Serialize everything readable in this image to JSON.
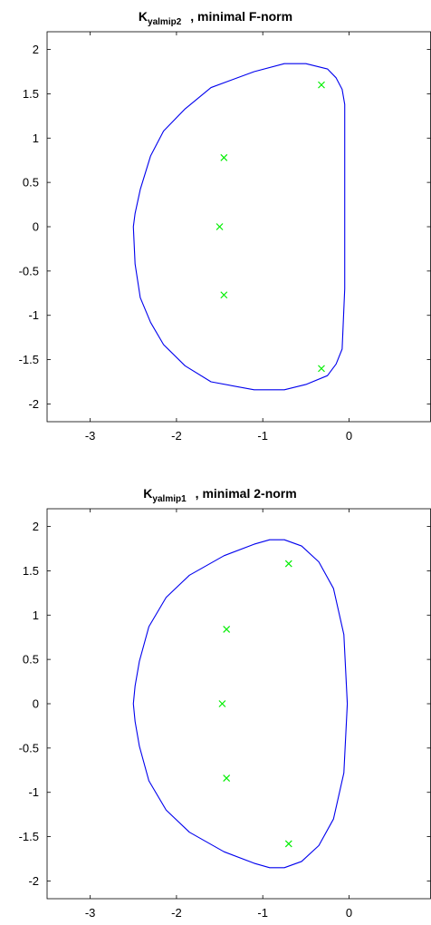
{
  "figure": {
    "panels": [
      {
        "title_main": "K",
        "title_sub": "yalmip2",
        "title_rest": ", minimal F-norm",
        "xticks": [
          "-3",
          "-2",
          "-1",
          "0"
        ],
        "yticks": [
          "2",
          "1.5",
          "1",
          "0.5",
          "0",
          "-0.5",
          "-1",
          "-1.5",
          "-2"
        ]
      },
      {
        "title_main": "K",
        "title_sub": "yalmip1",
        "title_rest": ", minimal 2-norm",
        "xticks": [
          "-3",
          "-2",
          "-1",
          "0"
        ],
        "yticks": [
          "2",
          "1.5",
          "1",
          "0.5",
          "0",
          "-0.5",
          "-1",
          "-1.5",
          "-2"
        ]
      }
    ]
  },
  "chart_data": [
    {
      "type": "line",
      "title": "K_yalmip2 , minimal F-norm",
      "xlim": [
        -3.5,
        0.95
      ],
      "ylim": [
        -2.2,
        2.2
      ],
      "xticks": [
        -3,
        -2,
        -1,
        0
      ],
      "yticks": [
        2,
        1.5,
        1,
        0.5,
        0,
        -0.5,
        -1,
        -1.5,
        -2
      ],
      "grid": false,
      "colors": {
        "boundary": "#0000ee",
        "poles": "#00ee00"
      },
      "series": [
        {
          "kind": "line",
          "x": [
            -0.05,
            -0.05,
            -0.05,
            -0.08,
            -0.15,
            -0.25,
            -0.5,
            -0.75,
            -1.1,
            -1.6,
            -1.9,
            -2.15,
            -2.3,
            -2.42,
            -2.48,
            -2.5,
            -2.48,
            -2.42,
            -2.3,
            -2.15,
            -1.9,
            -1.6,
            -1.1,
            -0.75,
            -0.5,
            -0.25,
            -0.15,
            -0.08,
            -0.05,
            -0.05
          ],
          "y": [
            0,
            0.7,
            1.38,
            1.55,
            1.68,
            1.78,
            1.84,
            1.84,
            1.75,
            1.57,
            1.33,
            1.08,
            0.8,
            0.42,
            0.15,
            0,
            -0.42,
            -0.8,
            -1.08,
            -1.33,
            -1.57,
            -1.75,
            -1.84,
            -1.84,
            -1.78,
            -1.68,
            -1.55,
            -1.38,
            -0.7,
            0
          ]
        },
        {
          "kind": "scatter",
          "marker": "x",
          "x": [
            -0.32,
            -1.45,
            -1.5,
            -1.45,
            -0.32
          ],
          "y": [
            1.6,
            0.78,
            0,
            -0.77,
            -1.6
          ]
        }
      ]
    },
    {
      "type": "line",
      "title": "K_yalmip1 , minimal 2-norm",
      "xlim": [
        -3.5,
        0.95
      ],
      "ylim": [
        -2.2,
        2.2
      ],
      "xticks": [
        -3,
        -2,
        -1,
        0
      ],
      "yticks": [
        2,
        1.5,
        1,
        0.5,
        0,
        -0.5,
        -1,
        -1.5,
        -2
      ],
      "grid": false,
      "colors": {
        "boundary": "#0000ee",
        "poles": "#00ee00"
      },
      "series": [
        {
          "kind": "line",
          "x": [
            -0.02,
            -0.06,
            -0.18,
            -0.35,
            -0.55,
            -0.75,
            -0.92,
            -1.1,
            -1.45,
            -1.85,
            -2.12,
            -2.32,
            -2.43,
            -2.48,
            -2.5,
            -2.48,
            -2.43,
            -2.32,
            -2.12,
            -1.85,
            -1.45,
            -1.1,
            -0.92,
            -0.75,
            -0.55,
            -0.35,
            -0.18,
            -0.06,
            -0.02
          ],
          "y": [
            0,
            0.78,
            1.3,
            1.6,
            1.78,
            1.85,
            1.85,
            1.8,
            1.67,
            1.45,
            1.2,
            0.87,
            0.48,
            0.2,
            0,
            -0.2,
            -0.48,
            -0.87,
            -1.2,
            -1.45,
            -1.67,
            -1.8,
            -1.85,
            -1.85,
            -1.78,
            -1.6,
            -1.3,
            -0.78,
            0
          ]
        },
        {
          "kind": "scatter",
          "marker": "x",
          "x": [
            -0.7,
            -1.42,
            -1.47,
            -1.42,
            -0.7
          ],
          "y": [
            1.58,
            0.84,
            0,
            -0.84,
            -1.58
          ]
        }
      ]
    }
  ]
}
